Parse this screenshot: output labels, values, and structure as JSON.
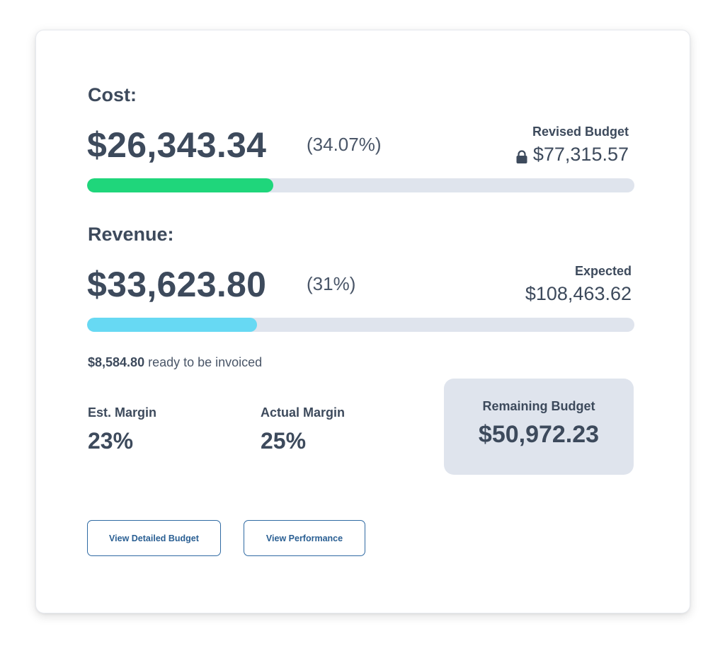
{
  "cost": {
    "label": "Cost:",
    "amount": "$26,343.34",
    "percent_text": "(34.07%)",
    "progress_fraction": 0.3407,
    "bar_color": "#1fd67b",
    "budget_label": "Revised Budget",
    "budget_value": "$77,315.57",
    "budget_icon": "lock-icon"
  },
  "revenue": {
    "label": "Revenue:",
    "amount": "$33,623.80",
    "percent_text": "(31%)",
    "progress_fraction": 0.31,
    "bar_color": "#67d9f3",
    "expected_label": "Expected",
    "expected_value": "$108,463.62"
  },
  "invoiced": {
    "amount": "$8,584.80",
    "text": "ready to be invoiced"
  },
  "margins": {
    "estimated_label": "Est. Margin",
    "estimated_value": "23%",
    "actual_label": "Actual Margin",
    "actual_value": "25%"
  },
  "remaining_budget": {
    "label": "Remaining Budget",
    "value": "$50,972.23",
    "background_color": "#dfe4ed"
  },
  "buttons": {
    "detailed_budget_label": "View Detailed Budget",
    "performance_label": "View Performance",
    "accent_color": "#2f6aa3"
  },
  "track_color": "#dfe4ed"
}
